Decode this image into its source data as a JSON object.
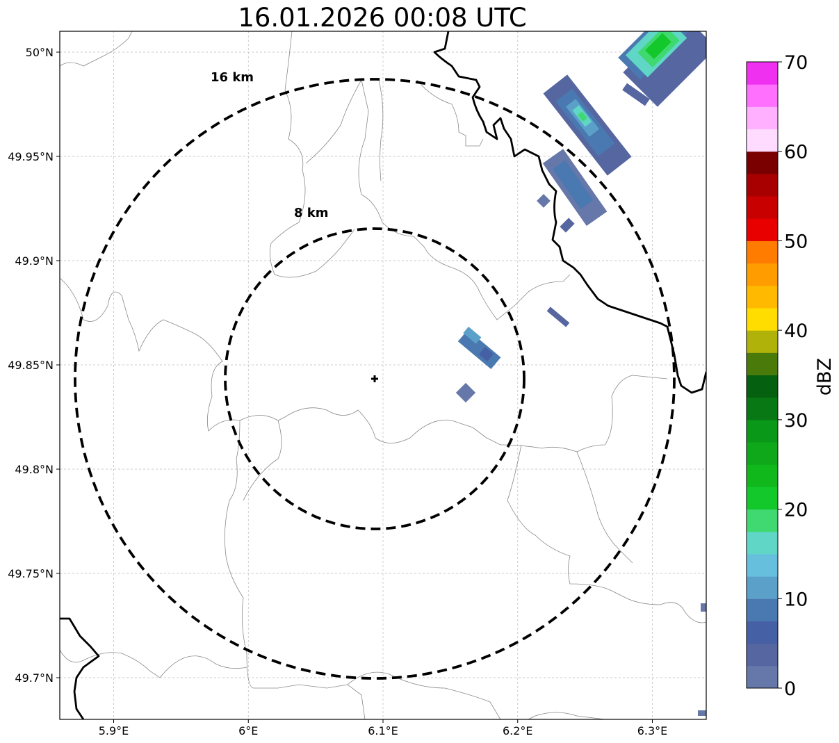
{
  "title": "16.01.2026 00:08 UTC",
  "map": {
    "lon_range": [
      5.86,
      6.34
    ],
    "lat_range": [
      49.68,
      50.01
    ],
    "center": {
      "lon": 6.095,
      "lat": 49.843
    },
    "lon_ticks": [
      {
        "value": 5.9,
        "label": "5.9°E"
      },
      {
        "value": 6.0,
        "label": "6°E"
      },
      {
        "value": 6.1,
        "label": "6.1°E"
      },
      {
        "value": 6.2,
        "label": "6.2°E"
      },
      {
        "value": 6.3,
        "label": "6.3°E"
      }
    ],
    "lat_ticks": [
      {
        "value": 50.0,
        "label": "50°N"
      },
      {
        "value": 49.95,
        "label": "49.95°N"
      },
      {
        "value": 49.9,
        "label": "49.9°N"
      },
      {
        "value": 49.85,
        "label": "49.85°N"
      },
      {
        "value": 49.8,
        "label": "49.8°N"
      },
      {
        "value": 49.75,
        "label": "49.75°N"
      },
      {
        "value": 49.7,
        "label": "49.7°N"
      }
    ],
    "gridlines": true,
    "range_rings": [
      {
        "label": "8 km"
      },
      {
        "label": "16 km"
      }
    ]
  },
  "colorbar": {
    "label": "dBZ",
    "min": 0,
    "max": 70,
    "tick_labels": [
      "0",
      "10",
      "20",
      "30",
      "40",
      "50",
      "60",
      "70"
    ],
    "colors": [
      "#6677aa",
      "#5566a0",
      "#4560a5",
      "#4a78b0",
      "#5ba0c8",
      "#66c0dd",
      "#60d6c6",
      "#40d870",
      "#12c82a",
      "#10b81c",
      "#0ea81a",
      "#0a9818",
      "#087814",
      "#056010",
      "#4a7a0a",
      "#b0b20a",
      "#ffdd00",
      "#ffba00",
      "#ff9c00",
      "#ff7c00",
      "#e80000",
      "#c80000",
      "#a80000",
      "#7a0000",
      "#ffdcff",
      "#ffb0ff",
      "#ff70ff",
      "#f030f0"
    ]
  }
}
